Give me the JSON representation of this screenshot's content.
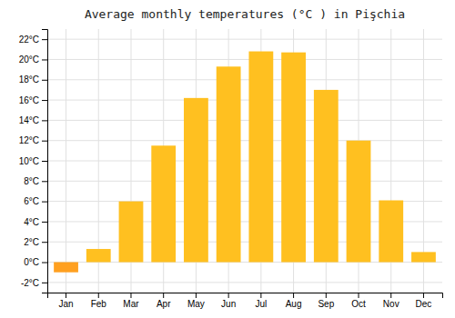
{
  "chart_data": {
    "type": "bar",
    "title": "Average monthly temperatures (°C ) in Pişchia",
    "categories": [
      "Jan",
      "Feb",
      "Mar",
      "Apr",
      "May",
      "Jun",
      "Jul",
      "Aug",
      "Sep",
      "Oct",
      "Nov",
      "Dec"
    ],
    "values": [
      -1.0,
      1.3,
      6.0,
      11.5,
      16.2,
      19.3,
      20.8,
      20.7,
      17.0,
      12.0,
      6.1,
      1.0
    ],
    "colors": [
      "#FFA020",
      "#FFC020",
      "#FFC020",
      "#FFC020",
      "#FFC020",
      "#FFC020",
      "#FFC020",
      "#FFC020",
      "#FFC020",
      "#FFC020",
      "#FFC020",
      "#FFC020"
    ],
    "ylim": [
      -3,
      23
    ],
    "yticks": [
      {
        "value": -2,
        "label": "-2°C"
      },
      {
        "value": 0,
        "label": "0°C"
      },
      {
        "value": 2,
        "label": "2°C"
      },
      {
        "value": 4,
        "label": "4°C"
      },
      {
        "value": 6,
        "label": "6°C"
      },
      {
        "value": 8,
        "label": "8°C"
      },
      {
        "value": 10,
        "label": "10°C"
      },
      {
        "value": 12,
        "label": "12°C"
      },
      {
        "value": 14,
        "label": "14°C"
      },
      {
        "value": 16,
        "label": "16°C"
      },
      {
        "value": 18,
        "label": "18°C"
      },
      {
        "value": 20,
        "label": "20°C"
      },
      {
        "value": 22,
        "label": "22°C"
      }
    ],
    "grid": true
  }
}
